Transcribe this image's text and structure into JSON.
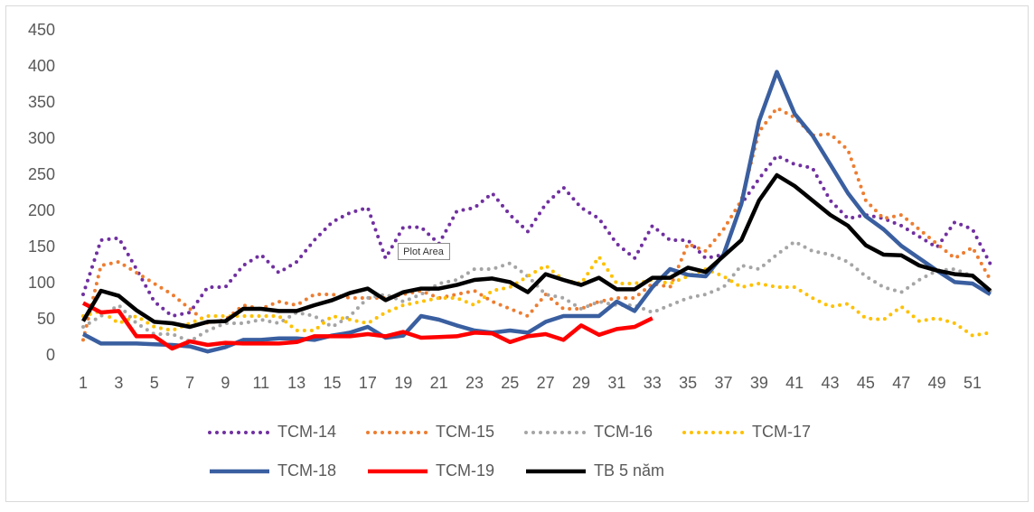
{
  "chart_data": {
    "type": "line",
    "annotation": "Plot Area",
    "categories": [
      1,
      null,
      3,
      null,
      5,
      null,
      7,
      null,
      9,
      null,
      11,
      null,
      13,
      null,
      15,
      null,
      17,
      null,
      19,
      null,
      21,
      null,
      23,
      null,
      25,
      null,
      27,
      null,
      29,
      null,
      31,
      null,
      33,
      null,
      35,
      null,
      37,
      null,
      39,
      null,
      41,
      null,
      43,
      null,
      45,
      null,
      47,
      null,
      49,
      null,
      51,
      null
    ],
    "ylim": [
      0,
      450
    ],
    "yticks": [
      0,
      50,
      100,
      150,
      200,
      250,
      300,
      350,
      400,
      450
    ],
    "grid": false,
    "legend": "bottom",
    "series": [
      {
        "name": "TCM-14",
        "color": "#7030a0",
        "style": "dotted",
        "values": [
          85,
          160,
          163,
          120,
          75,
          55,
          60,
          95,
          95,
          125,
          140,
          115,
          130,
          160,
          185,
          198,
          205,
          135,
          178,
          178,
          155,
          200,
          205,
          225,
          195,
          172,
          210,
          233,
          205,
          190,
          155,
          135,
          180,
          160,
          160,
          135,
          140,
          210,
          245,
          277,
          265,
          260,
          215,
          190,
          195,
          190,
          180,
          165,
          150,
          185,
          175,
          127
        ]
      },
      {
        "name": "TCM-15",
        "color": "#ed7d31",
        "style": "dotted",
        "values": [
          22,
          125,
          130,
          115,
          100,
          85,
          65,
          45,
          50,
          70,
          65,
          75,
          70,
          85,
          85,
          80,
          80,
          80,
          85,
          90,
          80,
          85,
          90,
          75,
          65,
          55,
          85,
          65,
          65,
          75,
          80,
          80,
          100,
          95,
          155,
          145,
          175,
          215,
          310,
          343,
          330,
          305,
          307,
          285,
          215,
          190,
          195,
          175,
          155,
          135,
          150,
          105
        ]
      },
      {
        "name": "TCM-16",
        "color": "#a5a5a5",
        "style": "dotted",
        "values": [
          40,
          55,
          70,
          45,
          30,
          30,
          20,
          35,
          45,
          45,
          50,
          45,
          60,
          55,
          40,
          55,
          80,
          85,
          75,
          85,
          100,
          105,
          120,
          120,
          128,
          110,
          85,
          80,
          65,
          75,
          70,
          70,
          60,
          70,
          80,
          85,
          95,
          125,
          120,
          140,
          158,
          145,
          140,
          130,
          110,
          95,
          88,
          105,
          118,
          120,
          110,
          90
        ]
      },
      {
        "name": "TCM-17",
        "color": "#ffc000",
        "style": "dotted",
        "values": [
          55,
          62,
          45,
          55,
          40,
          35,
          45,
          55,
          55,
          55,
          55,
          55,
          35,
          35,
          55,
          50,
          45,
          60,
          70,
          75,
          80,
          80,
          70,
          90,
          95,
          110,
          125,
          105,
          100,
          137,
          100,
          100,
          105,
          100,
          110,
          120,
          110,
          95,
          100,
          95,
          95,
          80,
          68,
          72,
          52,
          50,
          68,
          48,
          52,
          45,
          28,
          32
        ]
      },
      {
        "name": "TCM-18",
        "color": "#3a5fa0",
        "style": "solid",
        "values": [
          30,
          17,
          17,
          17,
          16,
          15,
          13,
          6,
          12,
          22,
          22,
          24,
          24,
          22,
          28,
          32,
          40,
          25,
          28,
          55,
          50,
          42,
          35,
          32,
          35,
          32,
          47,
          55,
          55,
          55,
          75,
          62,
          95,
          120,
          112,
          110,
          140,
          210,
          325,
          393,
          335,
          305,
          265,
          225,
          193,
          175,
          152,
          135,
          118,
          102,
          100,
          85
        ]
      },
      {
        "name": "TCM-19",
        "color": "#ff0000",
        "style": "solid",
        "values": [
          73,
          60,
          62,
          27,
          27,
          10,
          20,
          15,
          18,
          17,
          17,
          17,
          19,
          27,
          27,
          27,
          30,
          27,
          33,
          25,
          26,
          27,
          32,
          31,
          19,
          27,
          30,
          22,
          42,
          29,
          37,
          40,
          52,
          null,
          null,
          null,
          null,
          null,
          null,
          null,
          null,
          null,
          null,
          null,
          null,
          null,
          null,
          null,
          null,
          null,
          null,
          null
        ]
      },
      {
        "name": "TB 5 năm",
        "color": "#000000",
        "style": "solid",
        "values": [
          48,
          90,
          83,
          63,
          47,
          45,
          40,
          47,
          48,
          65,
          65,
          62,
          62,
          70,
          77,
          87,
          93,
          77,
          88,
          93,
          93,
          98,
          105,
          107,
          102,
          88,
          113,
          105,
          98,
          108,
          92,
          92,
          108,
          108,
          122,
          116,
          138,
          160,
          215,
          250,
          235,
          215,
          195,
          180,
          153,
          140,
          139,
          125,
          118,
          113,
          111,
          90
        ]
      }
    ]
  }
}
